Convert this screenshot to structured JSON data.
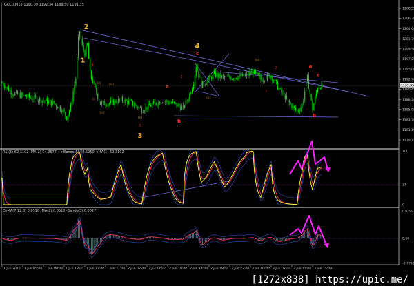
{
  "header": {
    "symbol_line": "GOLD,M15  1190.09 1192.34 1189.50 1191.35"
  },
  "indicators": {
    "rsi_label": "RSI(5) 62.3102  -MA(2) 54.9677  +>Bands(3) 48.5950  <MA(1) 62.3102",
    "osma_label": "OsMA(7,12,3) 0.0510  -MA(2) 0.0510  -Bands(3) 0.0327"
  },
  "watermark": "[1272x838] https://upic.me/",
  "colors": {
    "candles": "#00e000",
    "rsi": "#ffff30",
    "ma": "#ff3070",
    "bands": "#3050c0",
    "trendline": "#6a6ad0",
    "annotation_arrow": "#ff20ff",
    "wave_major": "#f0b020",
    "wave_minor": "#e03020",
    "price_line": "#808080"
  },
  "chart_data": [
    {
      "type": "candlestick",
      "title": "",
      "symbol": "GOLD",
      "timeframe": "M15",
      "ylim": [
        1179.15,
        1208.55
      ],
      "yticks": [
        "1208.55",
        "1206.30",
        "1204.00",
        "1201.75",
        "1199.50",
        "1197.25",
        "1195.00",
        "1192.70",
        "1190.45",
        "1188.20",
        "1185.95",
        "1183.70",
        "1181.40",
        "1179.15"
      ],
      "current_price": "1191.35",
      "xticks": [
        "1 Jun 2015",
        "1 Jun 05:00",
        "1 Jun 09:00",
        "1 Jun 13:00",
        "1 Jun 17:00",
        "1 Jun 21:00",
        "2 Jun 02:00",
        "2 Jun 06:00",
        "2 Jun 10:00",
        "2 Jun 14:00",
        "2 Jun 18:00",
        "2 Jun 22:00",
        "3 Jun 03:00",
        "3 Jun 07:00",
        "3 Jun 11:00",
        "3 Jun 15:00"
      ],
      "close_path": [
        [
          "1 Jun 01:00",
          1191.9
        ],
        [
          "1 Jun 03:00",
          1189.6
        ],
        [
          "1 Jun 05:00",
          1189.0
        ],
        [
          "1 Jun 07:00",
          1188.5
        ],
        [
          "1 Jun 09:00",
          1188.0
        ],
        [
          "1 Jun 11:00",
          1187.3
        ],
        [
          "1 Jun 12:30",
          1186.0
        ],
        [
          "1 Jun 13:30",
          1184.2
        ],
        [
          "1 Jun 14:15",
          1186.5
        ],
        [
          "1 Jun 14:45",
          1190.0
        ],
        [
          "1 Jun 15:15",
          1193.0
        ],
        [
          "1 Jun 15:45",
          1201.5
        ],
        [
          "1 Jun 16:00",
          1203.5
        ],
        [
          "1 Jun 16:30",
          1200.0
        ],
        [
          "1 Jun 17:00",
          1198.5
        ],
        [
          "1 Jun 17:30",
          1200.5
        ],
        [
          "1 Jun 18:00",
          1194.0
        ],
        [
          "1 Jun 19:00",
          1190.4
        ],
        [
          "1 Jun 20:00",
          1187.3
        ],
        [
          "1 Jun 22:00",
          1187.4
        ],
        [
          "2 Jun 00:00",
          1188.1
        ],
        [
          "2 Jun 02:00",
          1187.4
        ],
        [
          "2 Jun 04:00",
          1185.9
        ],
        [
          "2 Jun 06:00",
          1187.0
        ],
        [
          "2 Jun 08:00",
          1187.9
        ],
        [
          "2 Jun 10:00",
          1187.3
        ],
        [
          "2 Jun 12:00",
          1186.2
        ],
        [
          "2 Jun 13:00",
          1188.5
        ],
        [
          "2 Jun 14:00",
          1192.0
        ],
        [
          "2 Jun 14:30",
          1195.8
        ],
        [
          "2 Jun 15:30",
          1191.5
        ],
        [
          "2 Jun 16:30",
          1192.2
        ],
        [
          "2 Jun 18:00",
          1193.8
        ],
        [
          "2 Jun 20:00",
          1193.0
        ],
        [
          "2 Jun 22:00",
          1193.2
        ],
        [
          "3 Jun 00:00",
          1193.4
        ],
        [
          "3 Jun 01:30",
          1194.4
        ],
        [
          "3 Jun 03:00",
          1192.6
        ],
        [
          "3 Jun 05:00",
          1193.6
        ],
        [
          "3 Jun 06:30",
          1190.5
        ],
        [
          "3 Jun 08:00",
          1188.0
        ],
        [
          "3 Jun 10:00",
          1185.5
        ],
        [
          "3 Jun 11:00",
          1187.0
        ],
        [
          "3 Jun 12:00",
          1193.0
        ],
        [
          "3 Jun 13:00",
          1186.0
        ],
        [
          "3 Jun 14:00",
          1191.0
        ],
        [
          "3 Jun 14:45",
          1191.35
        ]
      ],
      "annotations": [
        {
          "text": "2",
          "kind": "major",
          "t": "1 Jun 17:16",
          "price": 1203.9
        },
        {
          "text": "1",
          "kind": "major",
          "t": "1 Jun 16:36",
          "price": 1196.5
        },
        {
          "text": "3",
          "kind": "major",
          "t": "2 Jun 03:40",
          "price": 1179.6
        },
        {
          "text": "4",
          "kind": "major",
          "t": "2 Jun 14:44",
          "price": 1199.6
        },
        {
          "text": "c",
          "kind": "minor",
          "t": "2 Jun 14:44",
          "price": 1198.1
        },
        {
          "text": "a",
          "kind": "minor",
          "t": "2 Jun 08:56",
          "price": 1190.7
        },
        {
          "text": "b",
          "kind": "minor",
          "t": "2 Jun 11:12",
          "price": 1183.0
        },
        {
          "text": "a",
          "kind": "minor",
          "t": "3 Jun 12:36",
          "price": 1195.2
        },
        {
          "text": "c",
          "kind": "minor",
          "t": "3 Jun 14:04",
          "price": 1193.2
        },
        {
          "text": "b",
          "kind": "minor",
          "t": "3 Jun 13:20",
          "price": 1184.2
        },
        {
          "text": "2",
          "kind": "small_red",
          "t": "3 Jun 05:56",
          "price": 1195.0
        },
        {
          "text": "1",
          "kind": "small_red",
          "t": "3 Jun 04:04",
          "price": 1189.8
        },
        {
          "text": "3",
          "kind": "small_red",
          "t": "2 Jun 11:40",
          "price": 1193.0
        },
        {
          "text": "4",
          "kind": "small_red",
          "t": "1 Jun 18:28",
          "price": 1195.6
        },
        {
          "text": "5",
          "kind": "small_red",
          "t": "2 Jun 03:40",
          "price": 1182.1
        },
        {
          "text": "(ii)",
          "kind": "small_orange",
          "t": "1 Jun 19:44",
          "price": 1191.6
        },
        {
          "text": "(iv)",
          "kind": "small_orange",
          "t": "1 Jun 22:08",
          "price": 1191.3
        },
        {
          "text": "(i)",
          "kind": "small_orange",
          "t": "1 Jun 18:44",
          "price": 1188.1
        },
        {
          "text": "(iii)",
          "kind": "small_orange",
          "t": "1 Jun 20:20",
          "price": 1185.0
        },
        {
          "text": "(v)",
          "kind": "small_orange",
          "t": "2 Jun 03:40",
          "price": 1183.9
        },
        {
          "text": "(ii)",
          "kind": "small_orange",
          "t": "2 Jun 16:52",
          "price": 1188.3
        },
        {
          "text": "(iii)",
          "kind": "small_orange",
          "t": "3 Jun 02:20",
          "price": 1196.8
        }
      ]
    },
    {
      "type": "line",
      "title": "RSI",
      "ylim": [
        0,
        100
      ],
      "yticks": [
        "100",
        "37",
        "0"
      ],
      "level": 37
    },
    {
      "type": "bar",
      "title": "OsMA",
      "ylim": [
        -0.7798,
        0.6799
      ],
      "yticks": [
        "0.6799",
        "0.00",
        "-0.7798"
      ],
      "level": 0
    }
  ]
}
